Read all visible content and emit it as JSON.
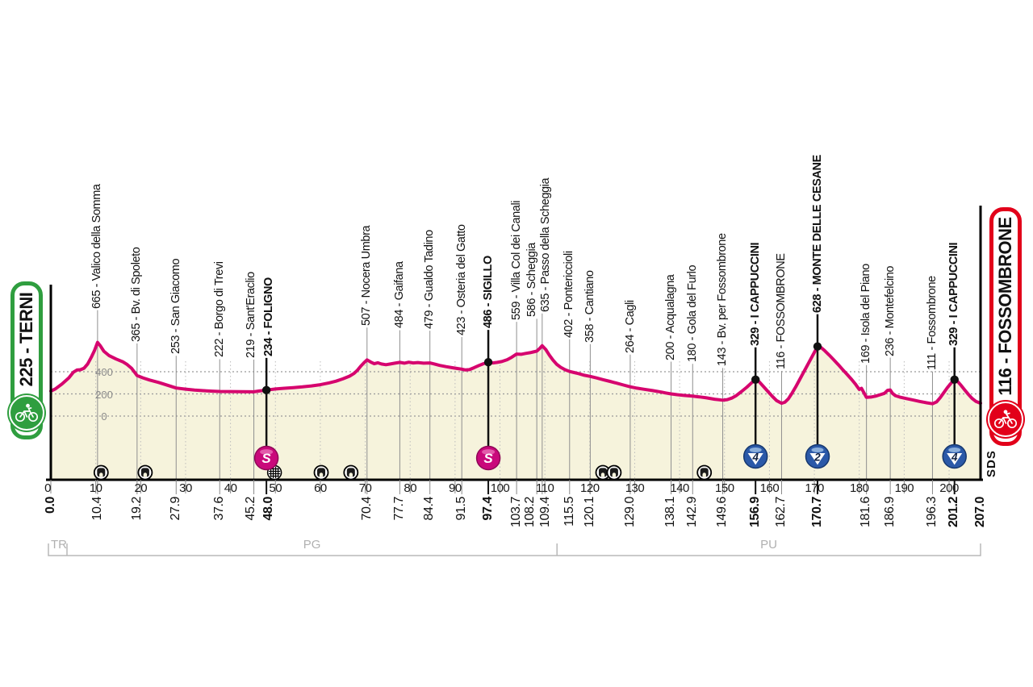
{
  "start_badge": {
    "label": "225 - TERNI",
    "color": "#2f9e3f",
    "icon": "bicycle-icon"
  },
  "finish_badge": {
    "label": "116 - FOSSOMBRONE",
    "color": "#e2001a",
    "icon": "bicycle-icon"
  },
  "watermark": "SDS",
  "colors": {
    "profile_line": "#d6046e",
    "profile_fill": "#f6f3dc",
    "grid": "#999999",
    "tick_line": "#bcbcbc",
    "waypoint_line": "#8f8f8f",
    "axis": "#000000",
    "region_gray": "#b8b8b8",
    "sprint": "#c9097b",
    "climb_blue": "#2b59a8",
    "climb_highlight": "#8fb3dd"
  },
  "chart_data": {
    "type": "area",
    "x_unit": "km",
    "y_unit": "m",
    "x_range": [
      0,
      207
    ],
    "x_tick_step": 10,
    "y_gridlines": [
      0,
      200,
      400
    ],
    "regions": [
      {
        "label": "TR",
        "from_km": 0,
        "to_km": 3.6
      },
      {
        "label": "PG",
        "from_km": 3.6,
        "to_km": 112.7
      },
      {
        "label": "PU",
        "from_km": 112.7,
        "to_km": 207
      }
    ],
    "waypoints": [
      {
        "km": 10.4,
        "elev": 665,
        "name": "665 - Valico della Somma",
        "bold": false,
        "icon": null
      },
      {
        "km": 19.2,
        "elev": 365,
        "name": "365 - Bv. di Spoleto",
        "bold": false,
        "icon": null
      },
      {
        "km": 27.9,
        "elev": 253,
        "name": "253 - San Giacomo",
        "bold": false,
        "icon": null
      },
      {
        "km": 37.6,
        "elev": 222,
        "name": "222 - Borgo di Trevi",
        "bold": false,
        "icon": null
      },
      {
        "km": 45.2,
        "elev": 219,
        "name": "219 - Sant'Eraclio",
        "bold": false,
        "icon": null,
        "dx": -3
      },
      {
        "km": 48.0,
        "elev": 234,
        "name": "234 - FOLIGNO",
        "bold": true,
        "icon": "sprint",
        "dx": 3
      },
      {
        "km": 70.4,
        "elev": 507,
        "name": "507 - Nocera Umbra",
        "bold": false,
        "icon": null
      },
      {
        "km": 77.7,
        "elev": 484,
        "name": "484 - Gaifana",
        "bold": false,
        "icon": null
      },
      {
        "km": 84.4,
        "elev": 479,
        "name": "479 - Gualdo Tadino",
        "bold": false,
        "icon": null
      },
      {
        "km": 91.5,
        "elev": 423,
        "name": "423 - Osteria del Gatto",
        "bold": false,
        "icon": null
      },
      {
        "km": 97.4,
        "elev": 486,
        "name": "486 - SIGILLO",
        "bold": true,
        "icon": "sprint"
      },
      {
        "km": 103.7,
        "elev": 559,
        "name": "559 - Villa Col dei Canali",
        "bold": false,
        "icon": null
      },
      {
        "km": 108.2,
        "elev": 586,
        "name": "586 - Scheggia",
        "bold": false,
        "icon": null,
        "dx": -6
      },
      {
        "km": 109.4,
        "elev": 635,
        "name": "635 - Passo della Scheggia",
        "bold": false,
        "icon": null,
        "dx": 5
      },
      {
        "km": 115.5,
        "elev": 402,
        "name": "402 - Pontericcioli",
        "bold": false,
        "icon": null
      },
      {
        "km": 120.1,
        "elev": 358,
        "name": "358 - Cantiano",
        "bold": false,
        "icon": null
      },
      {
        "km": 129.0,
        "elev": 264,
        "name": "264 - Cagli",
        "bold": false,
        "icon": null
      },
      {
        "km": 138.1,
        "elev": 200,
        "name": "200 - Acqualagna",
        "bold": false,
        "icon": null
      },
      {
        "km": 142.9,
        "elev": 180,
        "name": "180 - Gola del Furlo",
        "bold": false,
        "icon": null
      },
      {
        "km": 149.6,
        "elev": 143,
        "name": "143 - Bv. per Fossombrone",
        "bold": false,
        "icon": null
      },
      {
        "km": 156.9,
        "elev": 329,
        "name": "329 - I CAPPUCCINI",
        "bold": true,
        "icon": "climb4"
      },
      {
        "km": 162.7,
        "elev": 116,
        "name": "116 - FOSSOMBRONE",
        "bold": false,
        "icon": null
      },
      {
        "km": 170.7,
        "elev": 628,
        "name": "628 - MONTE DELLE CESANE",
        "bold": true,
        "icon": "climb2"
      },
      {
        "km": 181.6,
        "elev": 169,
        "name": "169 - Isola del Piano",
        "bold": false,
        "icon": null
      },
      {
        "km": 186.9,
        "elev": 236,
        "name": "236 - Montefelcino",
        "bold": false,
        "icon": null
      },
      {
        "km": 196.3,
        "elev": 111,
        "name": "111 - Fossombrone",
        "bold": false,
        "icon": null
      },
      {
        "km": 201.2,
        "elev": 329,
        "name": "329 - I CAPPUCCINI",
        "bold": true,
        "icon": "climb4"
      }
    ],
    "km_labels": [
      {
        "km": 0.0,
        "label": "0.0",
        "bold": true
      },
      {
        "km": 10.4,
        "label": "10.4",
        "bold": false
      },
      {
        "km": 19.2,
        "label": "19.2",
        "bold": false
      },
      {
        "km": 27.9,
        "label": "27.9",
        "bold": false
      },
      {
        "km": 37.6,
        "label": "37.6",
        "bold": false
      },
      {
        "km": 45.2,
        "label": "45.2",
        "bold": false,
        "dx": -3
      },
      {
        "km": 48.0,
        "label": "48.0",
        "bold": true,
        "dx": 3
      },
      {
        "km": 70.4,
        "label": "70.4",
        "bold": false
      },
      {
        "km": 77.7,
        "label": "77.7",
        "bold": false
      },
      {
        "km": 84.4,
        "label": "84.4",
        "bold": false
      },
      {
        "km": 91.5,
        "label": "91.5",
        "bold": false
      },
      {
        "km": 97.4,
        "label": "97.4",
        "bold": true
      },
      {
        "km": 103.7,
        "label": "103.7",
        "bold": false
      },
      {
        "km": 108.2,
        "label": "108.2",
        "bold": false,
        "dx": -8
      },
      {
        "km": 109.4,
        "label": "109.4",
        "bold": false,
        "dx": 4
      },
      {
        "km": 115.5,
        "label": "115.5",
        "bold": false
      },
      {
        "km": 120.1,
        "label": "120.1",
        "bold": false
      },
      {
        "km": 129.0,
        "label": "129.0",
        "bold": false
      },
      {
        "km": 138.1,
        "label": "138.1",
        "bold": false
      },
      {
        "km": 142.9,
        "label": "142.9",
        "bold": false
      },
      {
        "km": 149.6,
        "label": "149.6",
        "bold": false
      },
      {
        "km": 156.9,
        "label": "156.9",
        "bold": true
      },
      {
        "km": 162.7,
        "label": "162.7",
        "bold": false
      },
      {
        "km": 170.7,
        "label": "170.7",
        "bold": true
      },
      {
        "km": 181.6,
        "label": "181.6",
        "bold": false
      },
      {
        "km": 186.9,
        "label": "186.9",
        "bold": false
      },
      {
        "km": 196.3,
        "label": "196.3",
        "bold": false
      },
      {
        "km": 201.2,
        "label": "201.2",
        "bold": true
      },
      {
        "km": 207.0,
        "label": "207.0",
        "bold": true
      }
    ],
    "tunnels_km": [
      11.2,
      21.0,
      60.2,
      66.8,
      122.9,
      125.4,
      145.5
    ],
    "gallery_km": [
      49.8
    ],
    "profile": [
      [
        0,
        225
      ],
      [
        1,
        245
      ],
      [
        2.5,
        290
      ],
      [
        4,
        345
      ],
      [
        5,
        395
      ],
      [
        5.8,
        415
      ],
      [
        6.6,
        418
      ],
      [
        7.4,
        432
      ],
      [
        8.2,
        470
      ],
      [
        9,
        530
      ],
      [
        9.7,
        590
      ],
      [
        10.4,
        665
      ],
      [
        11,
        635
      ],
      [
        11.8,
        585
      ],
      [
        13,
        545
      ],
      [
        14.5,
        515
      ],
      [
        16,
        490
      ],
      [
        17,
        465
      ],
      [
        18,
        430
      ],
      [
        19.2,
        365
      ],
      [
        20.5,
        345
      ],
      [
        22,
        325
      ],
      [
        24,
        303
      ],
      [
        26,
        278
      ],
      [
        27.9,
        253
      ],
      [
        30,
        243
      ],
      [
        32,
        235
      ],
      [
        34,
        229
      ],
      [
        36,
        225
      ],
      [
        37.6,
        222
      ],
      [
        40,
        221
      ],
      [
        42.5,
        220
      ],
      [
        45.2,
        219
      ],
      [
        46.4,
        226
      ],
      [
        48,
        234
      ],
      [
        50,
        244
      ],
      [
        52,
        251
      ],
      [
        54,
        257
      ],
      [
        56,
        263
      ],
      [
        58,
        272
      ],
      [
        60,
        283
      ],
      [
        62,
        300
      ],
      [
        63.5,
        315
      ],
      [
        65,
        335
      ],
      [
        66.5,
        360
      ],
      [
        67.5,
        385
      ],
      [
        68.3,
        415
      ],
      [
        69,
        450
      ],
      [
        69.7,
        480
      ],
      [
        70.4,
        507
      ],
      [
        71.2,
        488
      ],
      [
        72,
        472
      ],
      [
        72.8,
        481
      ],
      [
        73.6,
        470
      ],
      [
        74.6,
        463
      ],
      [
        75.6,
        470
      ],
      [
        76.6,
        477
      ],
      [
        77.7,
        484
      ],
      [
        78.7,
        477
      ],
      [
        79.7,
        486
      ],
      [
        80.7,
        479
      ],
      [
        81.7,
        483
      ],
      [
        83,
        477
      ],
      [
        84.4,
        479
      ],
      [
        85.4,
        470
      ],
      [
        86.6,
        457
      ],
      [
        88,
        446
      ],
      [
        89.5,
        436
      ],
      [
        90.5,
        429
      ],
      [
        91.5,
        423
      ],
      [
        92.3,
        416
      ],
      [
        93.2,
        419
      ],
      [
        94.2,
        436
      ],
      [
        95.3,
        456
      ],
      [
        96.3,
        472
      ],
      [
        97.4,
        486
      ],
      [
        98.4,
        479
      ],
      [
        99.4,
        484
      ],
      [
        100.4,
        492
      ],
      [
        101.6,
        508
      ],
      [
        102.6,
        530
      ],
      [
        103.7,
        559
      ],
      [
        104.7,
        557
      ],
      [
        105.7,
        565
      ],
      [
        106.7,
        572
      ],
      [
        107.4,
        578
      ],
      [
        108.2,
        586
      ],
      [
        108.8,
        608
      ],
      [
        109.4,
        635
      ],
      [
        110.2,
        600
      ],
      [
        111,
        550
      ],
      [
        111.8,
        505
      ],
      [
        112.6,
        468
      ],
      [
        113.5,
        440
      ],
      [
        114.5,
        418
      ],
      [
        115.5,
        402
      ],
      [
        116.5,
        393
      ],
      [
        117.5,
        383
      ],
      [
        118.8,
        368
      ],
      [
        120.1,
        358
      ],
      [
        121.5,
        344
      ],
      [
        123,
        328
      ],
      [
        124.5,
        313
      ],
      [
        126,
        297
      ],
      [
        127.5,
        280
      ],
      [
        129,
        264
      ],
      [
        130.5,
        252
      ],
      [
        132,
        242
      ],
      [
        134,
        230
      ],
      [
        136,
        216
      ],
      [
        137,
        208
      ],
      [
        138.1,
        200
      ],
      [
        139.5,
        193
      ],
      [
        141,
        186
      ],
      [
        142.9,
        180
      ],
      [
        144.4,
        173
      ],
      [
        146,
        164
      ],
      [
        147.8,
        152
      ],
      [
        149.6,
        143
      ],
      [
        150.6,
        148
      ],
      [
        151.6,
        162
      ],
      [
        152.6,
        185
      ],
      [
        153.8,
        222
      ],
      [
        155,
        262
      ],
      [
        156,
        300
      ],
      [
        156.9,
        329
      ],
      [
        157.7,
        310
      ],
      [
        158.6,
        270
      ],
      [
        159.6,
        225
      ],
      [
        160.6,
        180
      ],
      [
        161.6,
        140
      ],
      [
        162.7,
        116
      ],
      [
        163.4,
        124
      ],
      [
        164.2,
        155
      ],
      [
        165,
        205
      ],
      [
        165.8,
        260
      ],
      [
        166.6,
        320
      ],
      [
        167.4,
        380
      ],
      [
        168.2,
        440
      ],
      [
        169,
        500
      ],
      [
        169.8,
        560
      ],
      [
        170.7,
        628
      ],
      [
        171.5,
        618
      ],
      [
        172.3,
        590
      ],
      [
        173.3,
        550
      ],
      [
        174.3,
        508
      ],
      [
        175.3,
        465
      ],
      [
        176.3,
        420
      ],
      [
        177.3,
        375
      ],
      [
        178.3,
        330
      ],
      [
        179.2,
        285
      ],
      [
        180,
        240
      ],
      [
        180.5,
        250
      ],
      [
        181.6,
        169
      ],
      [
        182.6,
        172
      ],
      [
        183.6,
        180
      ],
      [
        184.6,
        192
      ],
      [
        185.6,
        205
      ],
      [
        186.3,
        232
      ],
      [
        186.9,
        236
      ],
      [
        187.4,
        205
      ],
      [
        188,
        185
      ],
      [
        189,
        172
      ],
      [
        190.5,
        158
      ],
      [
        192,
        145
      ],
      [
        193.5,
        132
      ],
      [
        195,
        120
      ],
      [
        196.3,
        111
      ],
      [
        197.2,
        128
      ],
      [
        198,
        165
      ],
      [
        198.8,
        210
      ],
      [
        199.6,
        255
      ],
      [
        200.4,
        295
      ],
      [
        201.2,
        329
      ],
      [
        201.9,
        312
      ],
      [
        202.7,
        275
      ],
      [
        203.5,
        235
      ],
      [
        204.3,
        195
      ],
      [
        205.1,
        160
      ],
      [
        206,
        132
      ],
      [
        207,
        116
      ]
    ]
  }
}
